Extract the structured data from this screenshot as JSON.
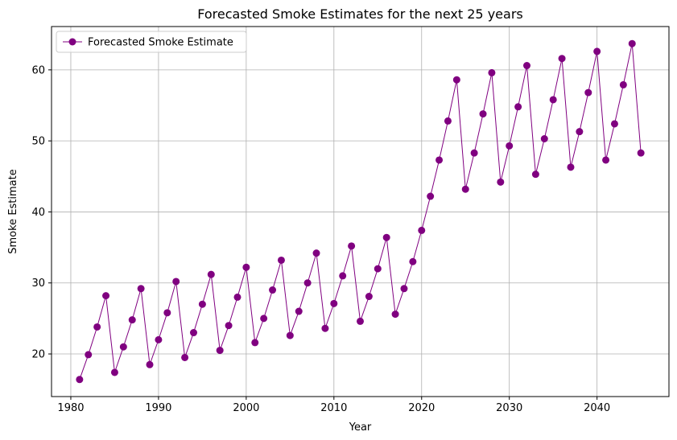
{
  "chart_data": {
    "type": "line",
    "title": "Forecasted Smoke Estimates for the next 25 years",
    "xlabel": "Year",
    "ylabel": "Smoke Estimate",
    "xlim": [
      1977.8,
      2048.2
    ],
    "ylim": [
      14.0,
      66.1
    ],
    "xticks": [
      1980,
      1990,
      2000,
      2010,
      2020,
      2030,
      2040
    ],
    "yticks": [
      20,
      30,
      40,
      50,
      60
    ],
    "grid": true,
    "legend_position": "top-left",
    "series": [
      {
        "name": "Forecasted Smoke Estimate",
        "color": "#800080",
        "marker": "circle",
        "x": [
          1981,
          1982,
          1983,
          1984,
          1985,
          1986,
          1987,
          1988,
          1989,
          1990,
          1991,
          1992,
          1993,
          1994,
          1995,
          1996,
          1997,
          1998,
          1999,
          2000,
          2001,
          2002,
          2003,
          2004,
          2005,
          2006,
          2007,
          2008,
          2009,
          2010,
          2011,
          2012,
          2013,
          2014,
          2015,
          2016,
          2017,
          2018,
          2019,
          2020,
          2021,
          2022,
          2023,
          2024,
          2025,
          2026,
          2027,
          2028,
          2029,
          2030,
          2031,
          2032,
          2033,
          2034,
          2035,
          2036,
          2037,
          2038,
          2039,
          2040,
          2041,
          2042,
          2043,
          2044,
          2045
        ],
        "y": [
          16.4,
          19.9,
          23.8,
          28.2,
          17.4,
          21.0,
          24.8,
          29.2,
          18.5,
          22.0,
          25.8,
          30.2,
          19.5,
          23.0,
          27.0,
          31.2,
          20.5,
          24.0,
          28.0,
          32.2,
          21.6,
          25.0,
          29.0,
          33.2,
          22.6,
          26.0,
          30.0,
          34.2,
          23.6,
          27.1,
          31.0,
          35.2,
          24.6,
          28.1,
          32.0,
          36.4,
          25.6,
          29.2,
          33.0,
          37.4,
          42.2,
          47.3,
          52.8,
          58.6,
          43.2,
          48.3,
          53.8,
          59.6,
          44.2,
          49.3,
          54.8,
          60.6,
          45.3,
          50.3,
          55.8,
          61.6,
          46.3,
          51.3,
          56.8,
          62.6,
          47.3,
          52.4,
          57.9,
          63.7,
          48.3
        ]
      }
    ]
  }
}
